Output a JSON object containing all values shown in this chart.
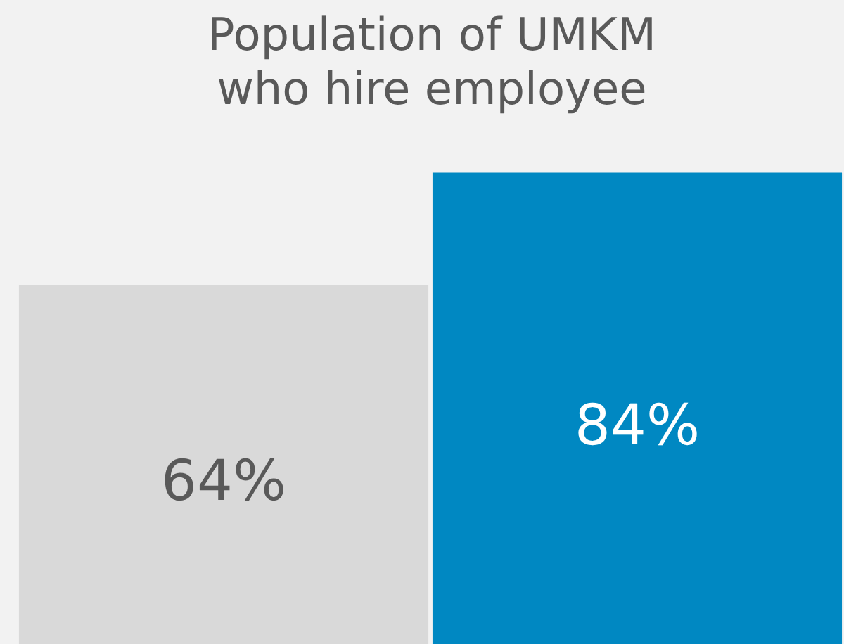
{
  "chart_data": {
    "type": "bar",
    "title": "Population of UMKM\nwho hire employee",
    "categories": [
      null,
      null
    ],
    "values": [
      64,
      84
    ],
    "colors": [
      "#d9d9d9",
      "#0088c2"
    ],
    "value_labels": [
      "64%",
      "84%"
    ],
    "legend": false
  }
}
